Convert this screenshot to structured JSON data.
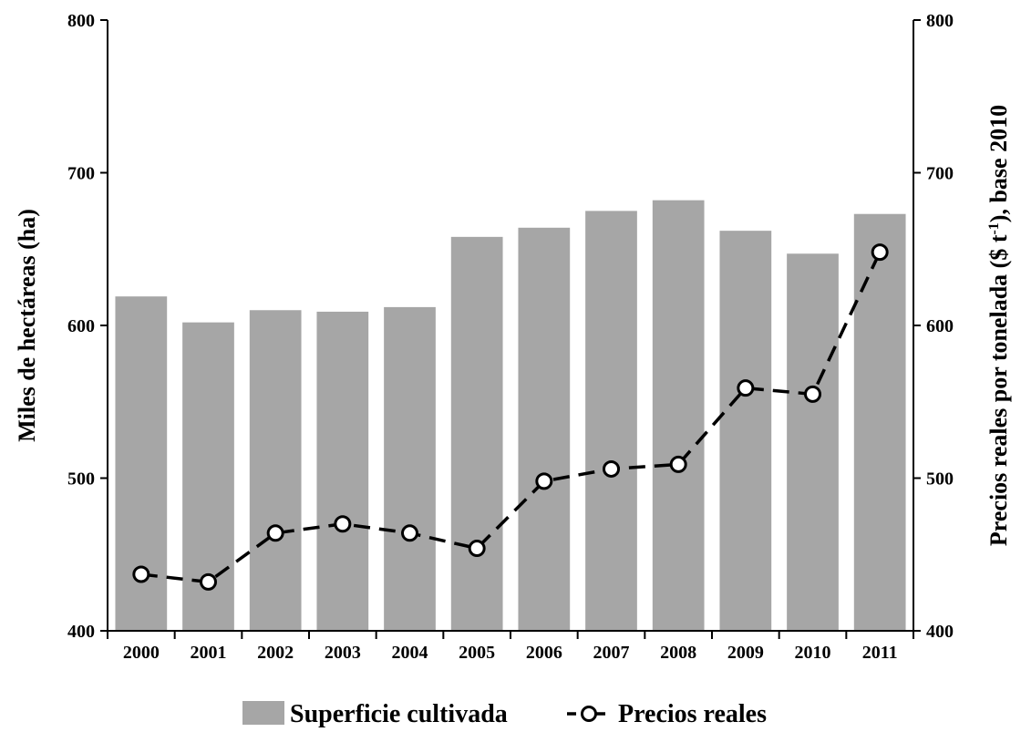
{
  "chart_data": {
    "type": "bar",
    "categories": [
      "2000",
      "2001",
      "2002",
      "2003",
      "2004",
      "2005",
      "2006",
      "2007",
      "2008",
      "2009",
      "2010",
      "2011"
    ],
    "series": [
      {
        "name": "Superficie cultivada",
        "type": "bar",
        "axis": "left",
        "color": "#a6a6a6",
        "values": [
          619,
          602,
          610,
          609,
          612,
          658,
          664,
          675,
          682,
          662,
          647,
          673
        ]
      },
      {
        "name": "Precios reales",
        "type": "line",
        "axis": "right",
        "color": "#000000",
        "line_style": "dashed",
        "marker": "open-circle",
        "values": [
          437,
          432,
          464,
          470,
          464,
          454,
          498,
          506,
          509,
          559,
          555,
          648
        ]
      }
    ],
    "ylabel": "Miles de hectáreas (ha)",
    "y2label_prefix": "Precios reales por tonelada ($ t",
    "y2label_sup": "-1",
    "y2label_suffix": "), base 2010",
    "ylim": [
      400,
      800
    ],
    "y2lim": [
      400,
      800
    ],
    "yticks": [
      "400",
      "500",
      "600",
      "700",
      "800"
    ],
    "y2ticks": [
      "400",
      "500",
      "600",
      "700",
      "800"
    ],
    "legend_position": "bottom",
    "grid": false
  }
}
